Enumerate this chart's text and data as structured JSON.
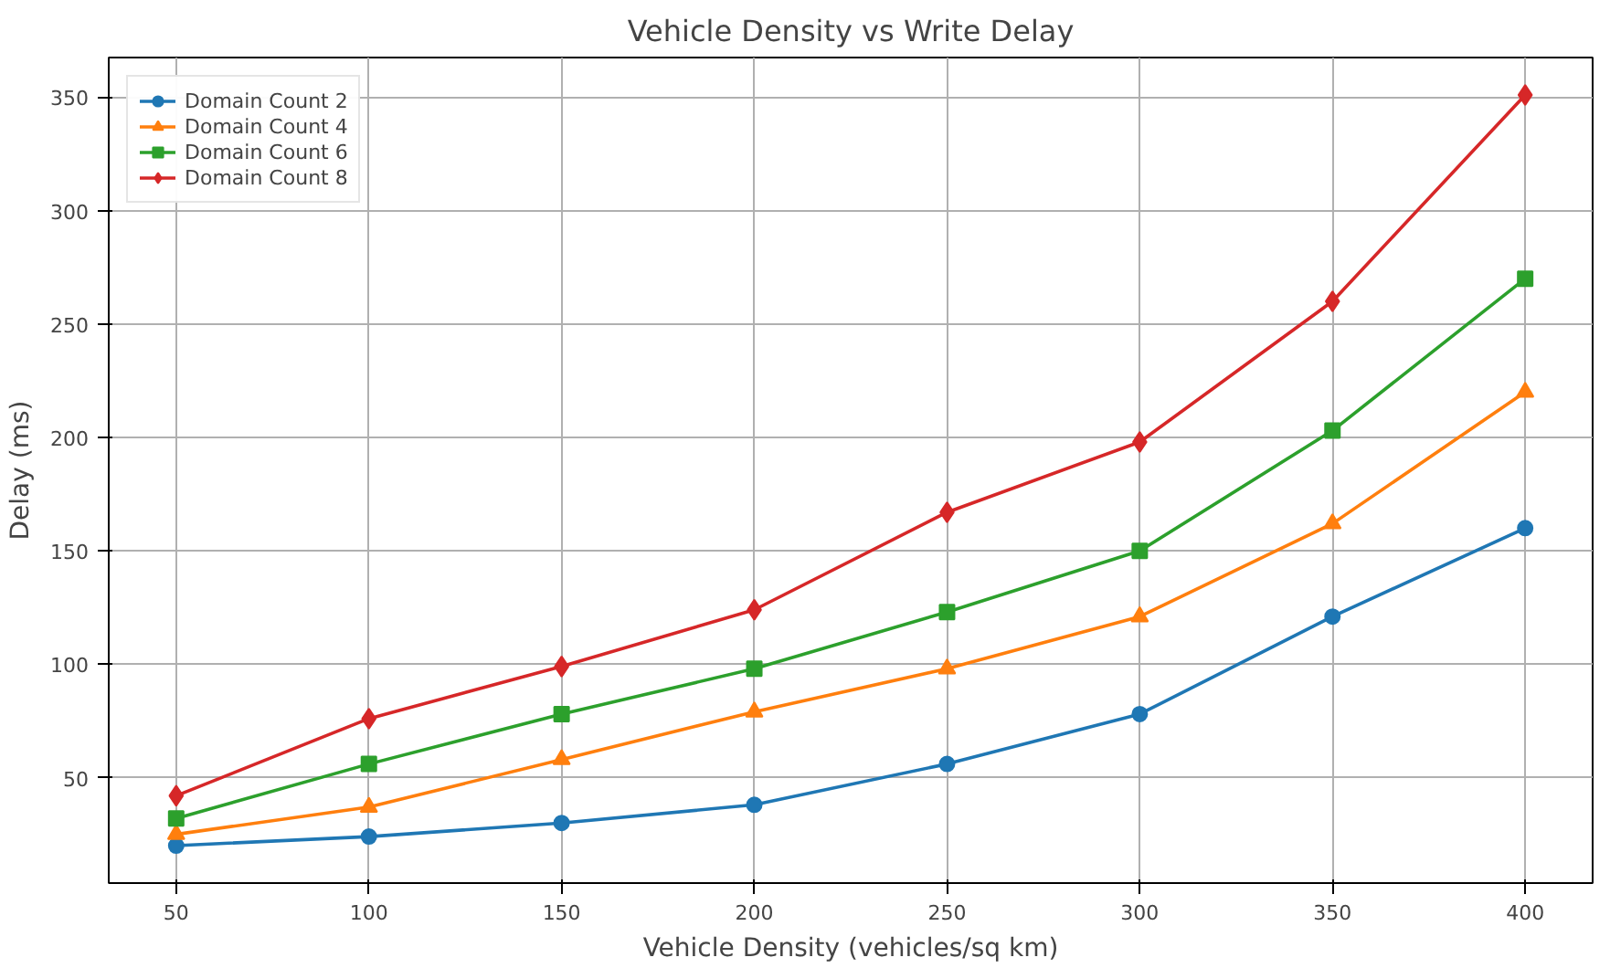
{
  "chart_data": {
    "type": "line",
    "title": "Vehicle Density vs Write Delay",
    "xlabel": "Vehicle Density (vehicles/sq km)",
    "ylabel": "Delay (ms)",
    "x": [
      50,
      100,
      150,
      200,
      250,
      300,
      350,
      400
    ],
    "series": [
      {
        "name": "Domain Count 2",
        "color": "#1f77b4",
        "marker": "circle",
        "values": [
          20,
          24,
          30,
          38,
          56,
          78,
          121,
          160
        ]
      },
      {
        "name": "Domain Count 4",
        "color": "#ff7f0e",
        "marker": "triangle",
        "values": [
          25,
          37,
          58,
          79,
          98,
          121,
          162,
          220
        ]
      },
      {
        "name": "Domain Count 6",
        "color": "#2ca02c",
        "marker": "square",
        "values": [
          32,
          56,
          78,
          98,
          123,
          150,
          203,
          270
        ]
      },
      {
        "name": "Domain Count 8",
        "color": "#d62728",
        "marker": "diamond",
        "values": [
          42,
          76,
          99,
          124,
          167,
          198,
          260,
          351
        ]
      }
    ],
    "xlim": [
      32.5,
      417.5
    ],
    "ylim": [
      3.5,
      367.5
    ],
    "xticks": [
      50,
      100,
      150,
      200,
      250,
      300,
      350,
      400
    ],
    "yticks": [
      50,
      100,
      150,
      200,
      250,
      300,
      350
    ],
    "grid": true,
    "legend": "top left",
    "line_style": "solid"
  }
}
